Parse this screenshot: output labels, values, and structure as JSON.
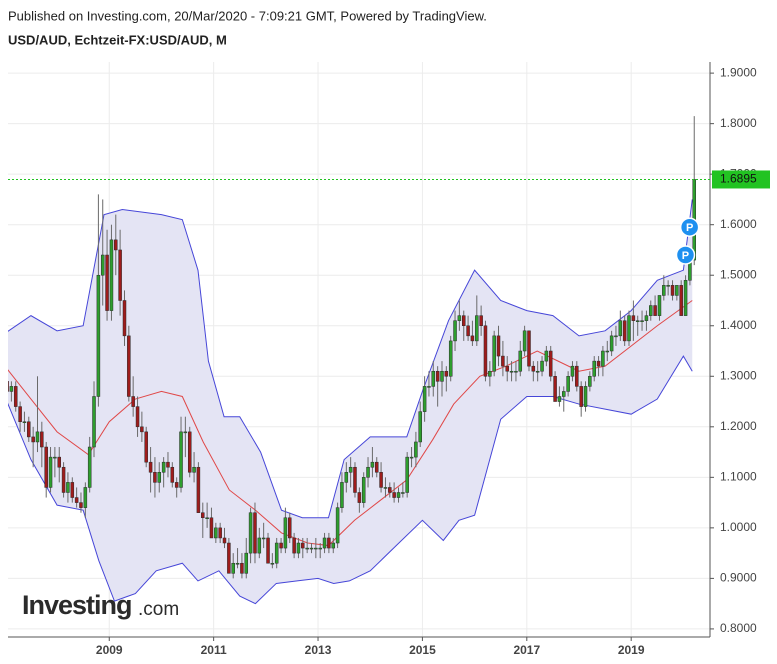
{
  "chart_data": {
    "type": "candlestick",
    "published": "Published on Investing.com, 20/Mar/2020 - 7:09:21 GMT, Powered by TradingView.",
    "title": "USD/AUD, Echtzeit-FX:USD/AUD, M",
    "logo": [
      "Investing",
      ".com"
    ],
    "xlim": [
      2007.06,
      2020.51
    ],
    "xticks": [
      2009,
      2011,
      2013,
      2015,
      2017,
      2019
    ],
    "ylim": [
      0.784,
      1.922
    ],
    "yticks": [
      {
        "value": 0.8,
        "label": "0.8000"
      },
      {
        "value": 0.9,
        "label": "0.9000"
      },
      {
        "value": 1.0,
        "label": "1.0000"
      },
      {
        "value": 1.1,
        "label": "1.1000"
      },
      {
        "value": 1.2,
        "label": "1.2000"
      },
      {
        "value": 1.3,
        "label": "1.3000"
      },
      {
        "value": 1.4,
        "label": "1.4000"
      },
      {
        "value": 1.5,
        "label": "1.5000"
      },
      {
        "value": 1.6,
        "label": "1.6000"
      },
      {
        "value": 1.7,
        "label": "1.7000"
      },
      {
        "value": 1.8,
        "label": "1.8000"
      },
      {
        "value": 1.9,
        "label": "1.9000"
      }
    ],
    "grid": true,
    "up_color": "#2e9e2e",
    "down_color": "#9e1c1c",
    "last_price_color": "#22c322",
    "candles": [
      [
        2007.042,
        1.29,
        1.3,
        1.26,
        1.27
      ],
      [
        2007.125,
        1.27,
        1.29,
        1.25,
        1.28
      ],
      [
        2007.208,
        1.28,
        1.29,
        1.23,
        1.24
      ],
      [
        2007.292,
        1.24,
        1.25,
        1.19,
        1.21
      ],
      [
        2007.375,
        1.21,
        1.23,
        1.19,
        1.21
      ],
      [
        2007.458,
        1.21,
        1.22,
        1.17,
        1.18
      ],
      [
        2007.542,
        1.18,
        1.2,
        1.12,
        1.17
      ],
      [
        2007.625,
        1.17,
        1.3,
        1.15,
        1.19
      ],
      [
        2007.708,
        1.19,
        1.21,
        1.12,
        1.16
      ],
      [
        2007.792,
        1.16,
        1.17,
        1.06,
        1.08
      ],
      [
        2007.875,
        1.08,
        1.16,
        1.07,
        1.14
      ],
      [
        2007.958,
        1.14,
        1.16,
        1.1,
        1.14
      ],
      [
        2008.042,
        1.14,
        1.16,
        1.09,
        1.12
      ],
      [
        2008.125,
        1.12,
        1.13,
        1.06,
        1.07
      ],
      [
        2008.208,
        1.07,
        1.11,
        1.05,
        1.09
      ],
      [
        2008.292,
        1.09,
        1.1,
        1.05,
        1.06
      ],
      [
        2008.375,
        1.06,
        1.08,
        1.04,
        1.05
      ],
      [
        2008.458,
        1.05,
        1.07,
        1.03,
        1.04
      ],
      [
        2008.542,
        1.04,
        1.09,
        1.02,
        1.08
      ],
      [
        2008.625,
        1.08,
        1.18,
        1.07,
        1.16
      ],
      [
        2008.708,
        1.16,
        1.29,
        1.14,
        1.26
      ],
      [
        2008.792,
        1.26,
        1.66,
        1.24,
        1.5
      ],
      [
        2008.875,
        1.5,
        1.65,
        1.44,
        1.54
      ],
      [
        2008.958,
        1.54,
        1.59,
        1.41,
        1.43
      ],
      [
        2009.042,
        1.43,
        1.6,
        1.41,
        1.57
      ],
      [
        2009.125,
        1.57,
        1.62,
        1.5,
        1.55
      ],
      [
        2009.208,
        1.55,
        1.59,
        1.42,
        1.45
      ],
      [
        2009.292,
        1.45,
        1.47,
        1.36,
        1.38
      ],
      [
        2009.375,
        1.38,
        1.4,
        1.25,
        1.26
      ],
      [
        2009.458,
        1.26,
        1.3,
        1.22,
        1.24
      ],
      [
        2009.542,
        1.24,
        1.26,
        1.18,
        1.2
      ],
      [
        2009.625,
        1.2,
        1.23,
        1.17,
        1.19
      ],
      [
        2009.708,
        1.19,
        1.2,
        1.12,
        1.13
      ],
      [
        2009.792,
        1.13,
        1.16,
        1.07,
        1.11
      ],
      [
        2009.875,
        1.11,
        1.14,
        1.06,
        1.09
      ],
      [
        2009.958,
        1.09,
        1.13,
        1.07,
        1.11
      ],
      [
        2010.042,
        1.11,
        1.14,
        1.08,
        1.13
      ],
      [
        2010.125,
        1.13,
        1.15,
        1.1,
        1.12
      ],
      [
        2010.208,
        1.12,
        1.13,
        1.08,
        1.09
      ],
      [
        2010.292,
        1.09,
        1.1,
        1.06,
        1.08
      ],
      [
        2010.375,
        1.08,
        1.22,
        1.07,
        1.19
      ],
      [
        2010.458,
        1.19,
        1.22,
        1.14,
        1.19
      ],
      [
        2010.542,
        1.19,
        1.2,
        1.1,
        1.11
      ],
      [
        2010.625,
        1.11,
        1.15,
        1.09,
        1.12
      ],
      [
        2010.708,
        1.12,
        1.13,
        1.03,
        1.03
      ],
      [
        2010.792,
        1.03,
        1.05,
        0.98,
        1.02
      ],
      [
        2010.875,
        1.02,
        1.05,
        1.0,
        1.02
      ],
      [
        2010.958,
        1.02,
        1.04,
        0.98,
        0.98
      ],
      [
        2011.042,
        0.98,
        1.01,
        0.97,
        1.0
      ],
      [
        2011.125,
        1.0,
        1.01,
        0.97,
        0.98
      ],
      [
        2011.208,
        0.98,
        1.0,
        0.96,
        0.97
      ],
      [
        2011.292,
        0.97,
        0.98,
        0.91,
        0.91
      ],
      [
        2011.375,
        0.91,
        0.95,
        0.9,
        0.93
      ],
      [
        2011.458,
        0.93,
        0.96,
        0.92,
        0.93
      ],
      [
        2011.542,
        0.93,
        0.95,
        0.9,
        0.91
      ],
      [
        2011.625,
        0.91,
        0.98,
        0.9,
        0.95
      ],
      [
        2011.708,
        0.95,
        1.04,
        0.93,
        1.03
      ],
      [
        2011.792,
        1.03,
        1.05,
        0.93,
        0.95
      ],
      [
        2011.875,
        0.95,
        1.0,
        0.94,
        0.98
      ],
      [
        2011.958,
        0.98,
        1.01,
        0.96,
        0.98
      ],
      [
        2012.042,
        0.98,
        0.99,
        0.93,
        0.93
      ],
      [
        2012.125,
        0.93,
        0.95,
        0.92,
        0.93
      ],
      [
        2012.208,
        0.93,
        0.98,
        0.92,
        0.97
      ],
      [
        2012.292,
        0.97,
        0.98,
        0.95,
        0.96
      ],
      [
        2012.375,
        0.96,
        1.04,
        0.95,
        1.02
      ],
      [
        2012.458,
        1.02,
        1.03,
        0.97,
        0.98
      ],
      [
        2012.542,
        0.98,
        0.99,
        0.94,
        0.95
      ],
      [
        2012.625,
        0.95,
        0.98,
        0.94,
        0.97
      ],
      [
        2012.708,
        0.97,
        0.98,
        0.94,
        0.96
      ],
      [
        2012.792,
        0.96,
        0.98,
        0.95,
        0.96
      ],
      [
        2012.875,
        0.96,
        0.97,
        0.95,
        0.96
      ],
      [
        2012.958,
        0.96,
        0.98,
        0.94,
        0.96
      ],
      [
        2013.042,
        0.96,
        0.97,
        0.94,
        0.96
      ],
      [
        2013.125,
        0.96,
        0.99,
        0.95,
        0.98
      ],
      [
        2013.208,
        0.98,
        0.99,
        0.95,
        0.96
      ],
      [
        2013.292,
        0.96,
        0.98,
        0.95,
        0.97
      ],
      [
        2013.375,
        0.97,
        1.05,
        0.96,
        1.04
      ],
      [
        2013.458,
        1.04,
        1.11,
        1.03,
        1.09
      ],
      [
        2013.542,
        1.09,
        1.13,
        1.07,
        1.11
      ],
      [
        2013.625,
        1.11,
        1.14,
        1.08,
        1.12
      ],
      [
        2013.708,
        1.12,
        1.13,
        1.06,
        1.07
      ],
      [
        2013.792,
        1.07,
        1.08,
        1.03,
        1.05
      ],
      [
        2013.875,
        1.05,
        1.11,
        1.04,
        1.1
      ],
      [
        2013.958,
        1.1,
        1.14,
        1.08,
        1.12
      ],
      [
        2014.042,
        1.12,
        1.16,
        1.1,
        1.13
      ],
      [
        2014.125,
        1.13,
        1.14,
        1.1,
        1.11
      ],
      [
        2014.208,
        1.11,
        1.13,
        1.07,
        1.08
      ],
      [
        2014.292,
        1.08,
        1.1,
        1.06,
        1.08
      ],
      [
        2014.375,
        1.08,
        1.09,
        1.06,
        1.07
      ],
      [
        2014.458,
        1.07,
        1.09,
        1.05,
        1.06
      ],
      [
        2014.542,
        1.06,
        1.08,
        1.05,
        1.07
      ],
      [
        2014.625,
        1.07,
        1.09,
        1.06,
        1.07
      ],
      [
        2014.708,
        1.07,
        1.15,
        1.06,
        1.14
      ],
      [
        2014.792,
        1.14,
        1.16,
        1.12,
        1.14
      ],
      [
        2014.875,
        1.14,
        1.19,
        1.12,
        1.17
      ],
      [
        2014.958,
        1.17,
        1.25,
        1.16,
        1.23
      ],
      [
        2015.042,
        1.23,
        1.3,
        1.21,
        1.28
      ],
      [
        2015.125,
        1.28,
        1.31,
        1.26,
        1.28
      ],
      [
        2015.208,
        1.28,
        1.33,
        1.26,
        1.31
      ],
      [
        2015.292,
        1.31,
        1.32,
        1.24,
        1.29
      ],
      [
        2015.375,
        1.29,
        1.33,
        1.26,
        1.31
      ],
      [
        2015.458,
        1.31,
        1.32,
        1.27,
        1.3
      ],
      [
        2015.542,
        1.3,
        1.38,
        1.29,
        1.37
      ],
      [
        2015.625,
        1.37,
        1.43,
        1.35,
        1.41
      ],
      [
        2015.708,
        1.41,
        1.45,
        1.39,
        1.42
      ],
      [
        2015.792,
        1.42,
        1.43,
        1.37,
        1.4
      ],
      [
        2015.875,
        1.4,
        1.42,
        1.37,
        1.38
      ],
      [
        2015.958,
        1.38,
        1.41,
        1.36,
        1.37
      ],
      [
        2016.042,
        1.37,
        1.46,
        1.36,
        1.42
      ],
      [
        2016.125,
        1.42,
        1.44,
        1.38,
        1.4
      ],
      [
        2016.208,
        1.4,
        1.41,
        1.29,
        1.3
      ],
      [
        2016.292,
        1.3,
        1.33,
        1.28,
        1.31
      ],
      [
        2016.375,
        1.31,
        1.39,
        1.3,
        1.38
      ],
      [
        2016.458,
        1.38,
        1.4,
        1.32,
        1.34
      ],
      [
        2016.542,
        1.34,
        1.37,
        1.3,
        1.32
      ],
      [
        2016.625,
        1.32,
        1.34,
        1.29,
        1.31
      ],
      [
        2016.708,
        1.31,
        1.33,
        1.29,
        1.31
      ],
      [
        2016.792,
        1.31,
        1.33,
        1.29,
        1.31
      ],
      [
        2016.875,
        1.31,
        1.37,
        1.3,
        1.35
      ],
      [
        2016.958,
        1.35,
        1.4,
        1.34,
        1.39
      ],
      [
        2017.042,
        1.39,
        1.39,
        1.31,
        1.32
      ],
      [
        2017.125,
        1.32,
        1.33,
        1.29,
        1.31
      ],
      [
        2017.208,
        1.31,
        1.33,
        1.29,
        1.31
      ],
      [
        2017.292,
        1.31,
        1.34,
        1.3,
        1.33
      ],
      [
        2017.375,
        1.33,
        1.36,
        1.32,
        1.35
      ],
      [
        2017.458,
        1.35,
        1.36,
        1.29,
        1.3
      ],
      [
        2017.542,
        1.3,
        1.31,
        1.25,
        1.25
      ],
      [
        2017.625,
        1.25,
        1.28,
        1.24,
        1.26
      ],
      [
        2017.708,
        1.26,
        1.28,
        1.23,
        1.27
      ],
      [
        2017.792,
        1.27,
        1.31,
        1.26,
        1.3
      ],
      [
        2017.875,
        1.3,
        1.33,
        1.29,
        1.32
      ],
      [
        2017.958,
        1.32,
        1.33,
        1.27,
        1.28
      ],
      [
        2018.042,
        1.28,
        1.29,
        1.22,
        1.24
      ],
      [
        2018.125,
        1.24,
        1.29,
        1.23,
        1.28
      ],
      [
        2018.208,
        1.28,
        1.31,
        1.27,
        1.3
      ],
      [
        2018.292,
        1.3,
        1.34,
        1.29,
        1.33
      ],
      [
        2018.375,
        1.33,
        1.34,
        1.3,
        1.32
      ],
      [
        2018.458,
        1.32,
        1.36,
        1.3,
        1.35
      ],
      [
        2018.542,
        1.35,
        1.37,
        1.33,
        1.35
      ],
      [
        2018.625,
        1.35,
        1.39,
        1.34,
        1.38
      ],
      [
        2018.708,
        1.38,
        1.4,
        1.36,
        1.38
      ],
      [
        2018.792,
        1.38,
        1.43,
        1.37,
        1.41
      ],
      [
        2018.875,
        1.41,
        1.42,
        1.36,
        1.37
      ],
      [
        2018.958,
        1.37,
        1.43,
        1.36,
        1.42
      ],
      [
        2019.042,
        1.42,
        1.45,
        1.37,
        1.41
      ],
      [
        2019.125,
        1.41,
        1.42,
        1.38,
        1.41
      ],
      [
        2019.208,
        1.41,
        1.43,
        1.39,
        1.41
      ],
      [
        2019.292,
        1.41,
        1.43,
        1.39,
        1.42
      ],
      [
        2019.375,
        1.42,
        1.45,
        1.41,
        1.44
      ],
      [
        2019.458,
        1.44,
        1.46,
        1.42,
        1.42
      ],
      [
        2019.542,
        1.42,
        1.46,
        1.41,
        1.46
      ],
      [
        2019.625,
        1.46,
        1.5,
        1.45,
        1.48
      ],
      [
        2019.708,
        1.48,
        1.49,
        1.46,
        1.48
      ],
      [
        2019.792,
        1.48,
        1.49,
        1.45,
        1.46
      ],
      [
        2019.875,
        1.46,
        1.48,
        1.45,
        1.48
      ],
      [
        2019.958,
        1.48,
        1.49,
        1.42,
        1.42
      ],
      [
        2020.042,
        1.42,
        1.5,
        1.42,
        1.49
      ],
      [
        2020.125,
        1.49,
        1.55,
        1.48,
        1.53
      ],
      [
        2020.208,
        1.53,
        1.815,
        1.52,
        1.6895
      ]
    ],
    "bands": [
      {
        "name_role": "upper",
        "color": "#4646d8",
        "x": [
          2007.0,
          2007.5,
          2008.0,
          2008.5,
          2008.9,
          2009.25,
          2010.0,
          2010.4,
          2010.7,
          2010.9,
          2011.2,
          2011.5,
          2011.9,
          2012.3,
          2012.7,
          2013.2,
          2013.5,
          2014.0,
          2014.7,
          2015.0,
          2015.5,
          2016.0,
          2016.5,
          2017.0,
          2017.5,
          2018.0,
          2018.5,
          2019.0,
          2019.5,
          2020.0,
          2020.17
        ],
        "values": [
          1.385,
          1.42,
          1.39,
          1.4,
          1.62,
          1.63,
          1.62,
          1.61,
          1.51,
          1.33,
          1.22,
          1.22,
          1.15,
          1.035,
          1.02,
          1.02,
          1.135,
          1.18,
          1.18,
          1.27,
          1.41,
          1.51,
          1.45,
          1.43,
          1.42,
          1.38,
          1.39,
          1.43,
          1.49,
          1.51,
          1.65
        ]
      },
      {
        "name_role": "middle",
        "color": "#e04848",
        "x": [
          2007.0,
          2007.5,
          2008.0,
          2008.6,
          2009.0,
          2009.5,
          2010.0,
          2010.4,
          2010.8,
          2011.3,
          2011.8,
          2012.3,
          2012.8,
          2013.2,
          2013.7,
          2014.2,
          2014.7,
          2015.2,
          2015.6,
          2016.1,
          2016.6,
          2017.2,
          2017.6,
          2018.0,
          2018.5,
          2019.0,
          2019.5,
          2020.17
        ],
        "values": [
          1.32,
          1.255,
          1.19,
          1.145,
          1.21,
          1.255,
          1.27,
          1.26,
          1.17,
          1.075,
          1.035,
          0.99,
          0.97,
          0.965,
          1.015,
          1.055,
          1.095,
          1.175,
          1.245,
          1.3,
          1.32,
          1.35,
          1.33,
          1.31,
          1.32,
          1.36,
          1.4,
          1.45
        ]
      },
      {
        "name_role": "lower",
        "color": "#4646d8",
        "x": [
          2007.0,
          2007.5,
          2008.0,
          2008.5,
          2008.8,
          2009.1,
          2009.5,
          2009.9,
          2010.4,
          2010.7,
          2011.1,
          2011.5,
          2011.8,
          2012.2,
          2012.6,
          2013.0,
          2013.3,
          2013.6,
          2014.0,
          2014.5,
          2015.0,
          2015.4,
          2015.7,
          2016.0,
          2016.5,
          2017.0,
          2017.5,
          2018.0,
          2018.5,
          2019.0,
          2019.5,
          2020.0,
          2020.17
        ],
        "values": [
          1.26,
          1.135,
          1.045,
          1.035,
          0.935,
          0.855,
          0.87,
          0.915,
          0.93,
          0.895,
          0.915,
          0.865,
          0.85,
          0.89,
          0.895,
          0.9,
          0.89,
          0.895,
          0.915,
          0.965,
          1.015,
          0.975,
          1.015,
          1.025,
          1.215,
          1.26,
          1.26,
          1.245,
          1.235,
          1.225,
          1.255,
          1.34,
          1.31
        ]
      }
    ],
    "band_fill": "#e4e4f4",
    "markers": [
      {
        "x": 2020.04,
        "y": 1.54,
        "label": "P"
      },
      {
        "x": 2020.12,
        "y": 1.595,
        "label": "P"
      }
    ],
    "marker_color": "#1e90f0"
  }
}
